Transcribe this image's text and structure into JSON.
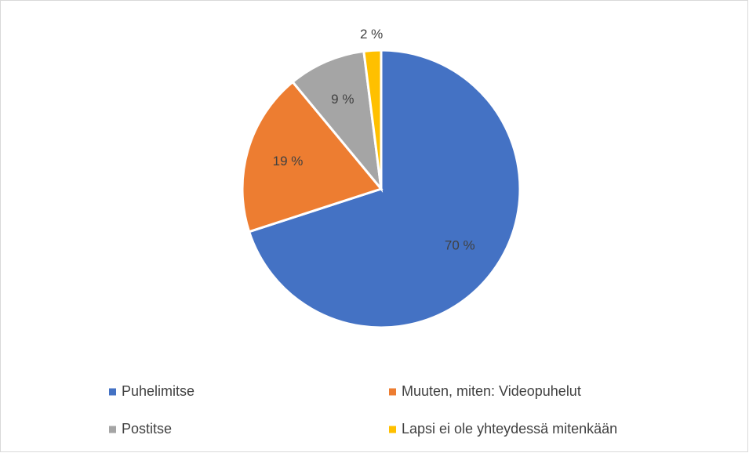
{
  "chart_data": {
    "type": "pie",
    "categories": [
      "Puhelimitse",
      "Muuten, miten: Videopuhelut",
      "Postitse",
      "Lapsi ei ole yhteydessä mitenkään"
    ],
    "values": [
      70,
      19,
      9,
      2
    ],
    "value_labels": [
      "70 %",
      "19 %",
      "9 %",
      "2 %"
    ],
    "colors": [
      "#4472c4",
      "#ed7d31",
      "#a5a5a5",
      "#ffc000"
    ],
    "legend": "bottom"
  }
}
